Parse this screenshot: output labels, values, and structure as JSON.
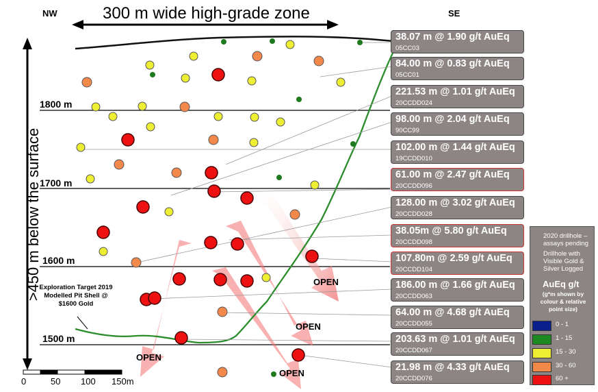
{
  "header": {
    "nw_label": "NW",
    "se_label": "SE",
    "zone_title": "300 m wide high-grade zone",
    "depth_label": ">450 m below the surface"
  },
  "levels": [
    {
      "label": "1800 m"
    },
    {
      "label": "1700 m"
    },
    {
      "label": "1600 m"
    },
    {
      "label": "1500 m"
    }
  ],
  "exploration_target": "Exploration Target 2019 Modelled Pit Shell @ $1600 Gold",
  "open_labels": [
    "OPEN",
    "OPEN",
    "OPEN",
    "OPEN"
  ],
  "scale_bar": [
    "0",
    "50",
    "100",
    "150m"
  ],
  "intercepts": [
    {
      "text": "38.07 m @  1.90 g/t AuEq",
      "hole": "05CC03",
      "new": false
    },
    {
      "text": "84.00 m @ 0.83 g/t AuEq",
      "hole": "05CC01",
      "new": false
    },
    {
      "text": "221.53 m @ 1.01 g/t AuEq",
      "hole": "20CCDD024",
      "new": false
    },
    {
      "text": "98.00 m @  2.04 g/t AuEq",
      "hole": "90CC99",
      "new": false
    },
    {
      "text": "102.00 m @ 1.44 g/t AuEq",
      "hole": "19CCDD010",
      "new": false
    },
    {
      "text": "61.00 m @ 2.47 g/t AuEq",
      "hole": "20CCDD096",
      "new": true
    },
    {
      "text": "128.00 m @ 3.02 g/t AuEq",
      "hole": "20CCDD028",
      "new": false
    },
    {
      "text": "38.05m @ 5.80 g/t AuEq",
      "hole": "20CCDD098",
      "new": true
    },
    {
      "text": "107.80m @ 2.59 g/t AuEq",
      "hole": "20CCDD104",
      "new": true
    },
    {
      "text": "186.00 m @ 1.66 g/t AuEq",
      "hole": "20CCDD063",
      "new": false
    },
    {
      "text": "64.00 m @ 4.68 g/t AuEq",
      "hole": "20CCDD055",
      "new": false
    },
    {
      "text": "203.63 m @ 1.01 g/t AuEq",
      "hole": "20CCDD067",
      "new": false
    },
    {
      "text": "21.98 m @ 4.33 g/t AuEq",
      "hole": "20CCDD076",
      "new": false
    }
  ],
  "legend": {
    "drillhole_2020": "2020 drillhole – assays pending",
    "visible_gold": "Drillhole with Visible Gold & Silver Logged",
    "title": "AuEq g/t",
    "note": "(g*m shown by colour & relative point size)",
    "classes": [
      {
        "label": "0 - 1",
        "color": "#0b1f8c"
      },
      {
        "label": "1 - 15",
        "color": "#1f8a1f"
      },
      {
        "label": "15 - 30",
        "color": "#eeee33"
      },
      {
        "label": "30 - 60",
        "color": "#f2884a"
      },
      {
        "label": "60 +",
        "color": "#ee1111"
      }
    ]
  }
}
